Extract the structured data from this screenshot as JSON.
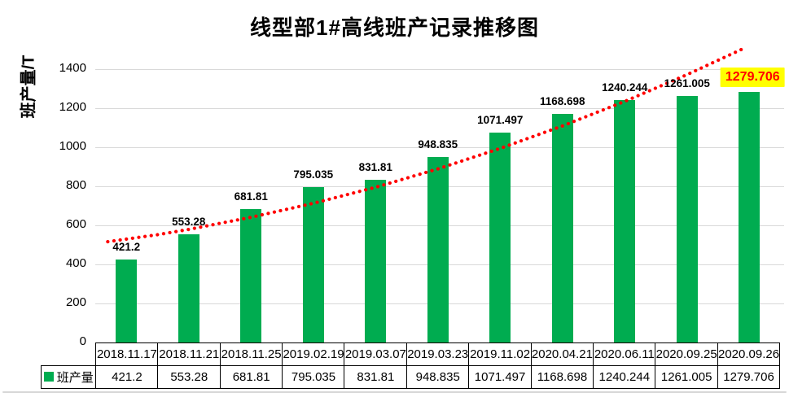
{
  "title": "线型部1#高线班产记录推移图",
  "y_axis": {
    "label": "班产量/T",
    "ticks": [
      "0",
      "200",
      "400",
      "600",
      "800",
      "1000",
      "1200",
      "1400"
    ],
    "max": 1400
  },
  "legend": {
    "label": "班产量"
  },
  "colors": {
    "bar": "#00AC50",
    "trend": "#FF0000",
    "highlight_bg": "#FFFF00",
    "highlight_text": "#FF0000",
    "gridline": "#D9D9D9",
    "table_border": "#000000",
    "label_text": "#000000"
  },
  "chart_data": {
    "type": "bar",
    "title": "线型部1#高线班产记录推移图",
    "xlabel": "",
    "ylabel": "班产量/T",
    "ylim": [
      0,
      1400
    ],
    "yticks": [
      0,
      200,
      400,
      600,
      800,
      1000,
      1200,
      1400
    ],
    "grid": true,
    "legend_position": "bottom-table",
    "categories": [
      "2018.11.17",
      "2018.11.21",
      "2018.11.25",
      "2019.02.19",
      "2019.03.07",
      "2019.03.23",
      "2019.11.02",
      "2020.04.21",
      "2020.06.11",
      "2020.09.25",
      "2020.09.26"
    ],
    "series": [
      {
        "name": "班产量",
        "color": "#00AC50",
        "values": [
          421.2,
          553.28,
          681.81,
          795.035,
          831.81,
          948.835,
          1071.497,
          1168.698,
          1240.244,
          1261.005,
          1279.706
        ]
      }
    ],
    "data_labels": [
      "421.2",
      "553.28",
      "681.81",
      "795.035",
      "831.81",
      "948.835",
      "1071.497",
      "1168.698",
      "1240.244",
      "1261.005",
      "1279.706"
    ],
    "highlighted_index": 10,
    "trendline": {
      "style": "dotted",
      "color": "#FF0000",
      "points": [
        {
          "t": -0.3,
          "v": 514
        },
        {
          "t": 0.5,
          "v": 550
        },
        {
          "t": 1.0,
          "v": 577
        },
        {
          "t": 2.0,
          "v": 639
        },
        {
          "t": 3.0,
          "v": 711
        },
        {
          "t": 4.0,
          "v": 793
        },
        {
          "t": 5.0,
          "v": 887
        },
        {
          "t": 6.0,
          "v": 992
        },
        {
          "t": 7.0,
          "v": 1107
        },
        {
          "t": 8.0,
          "v": 1233
        },
        {
          "t": 9.0,
          "v": 1370
        },
        {
          "t": 9.95,
          "v": 1510
        }
      ]
    }
  }
}
